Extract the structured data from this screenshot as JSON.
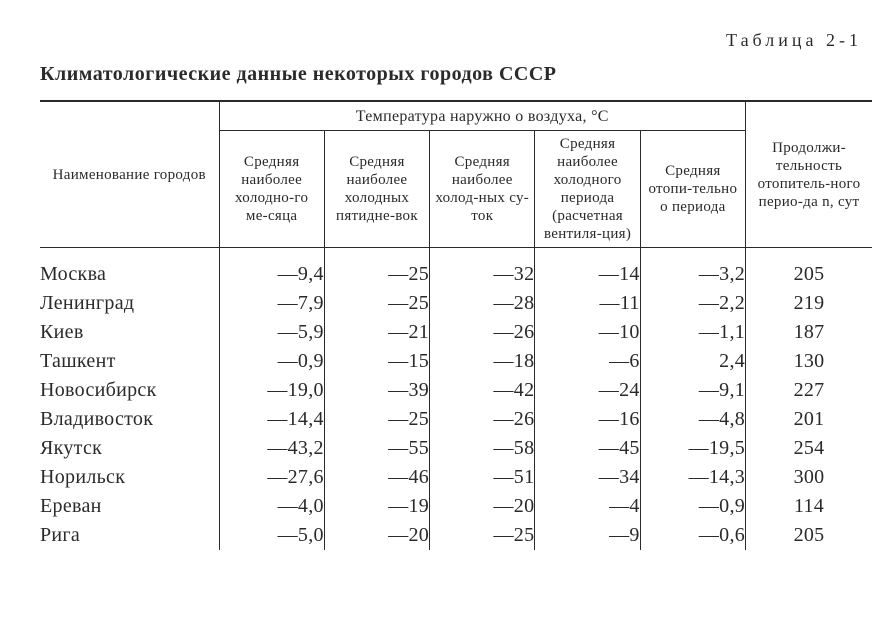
{
  "table_number": "Таблица 2-1",
  "title": "Климатологические данные некоторых городов СССР",
  "header": {
    "city": "Наименование городов",
    "temp_group": "Температура наружно о воздуха, °C",
    "col1": "Средняя наиболее холодно-го ме-сяца",
    "col2": "Средняя наиболее холодных пятидне-вок",
    "col3": "Средняя наиболее холод-ных су-ток",
    "col4": "Средняя наиболее холодного периода (расчетная вентиля-ция)",
    "col5": "Средняя отопи-тельно о периода",
    "duration": "Продолжи-тельность отопитель-ного перио-да n, сут"
  },
  "rows": [
    {
      "city": "Москва",
      "c1": "—9,4",
      "c2": "—25",
      "c3": "—32",
      "c4": "—14",
      "c5": "—3,2",
      "dur": "205"
    },
    {
      "city": "Ленинград",
      "c1": "—7,9",
      "c2": "—25",
      "c3": "—28",
      "c4": "—11",
      "c5": "—2,2",
      "dur": "219"
    },
    {
      "city": "Киев",
      "c1": "—5,9",
      "c2": "—21",
      "c3": "—26",
      "c4": "—10",
      "c5": "—1,1",
      "dur": "187"
    },
    {
      "city": "Ташкент",
      "c1": "—0,9",
      "c2": "—15",
      "c3": "—18",
      "c4": "—6",
      "c5": "2,4",
      "dur": "130"
    },
    {
      "city": "Новосибирск",
      "c1": "—19,0",
      "c2": "—39",
      "c3": "—42",
      "c4": "—24",
      "c5": "—9,1",
      "dur": "227"
    },
    {
      "city": "Владивосток",
      "c1": "—14,4",
      "c2": "—25",
      "c3": "—26",
      "c4": "—16",
      "c5": "—4,8",
      "dur": "201"
    },
    {
      "city": "Якутск",
      "c1": "—43,2",
      "c2": "—55",
      "c3": "—58",
      "c4": "—45",
      "c5": "—19,5",
      "dur": "254"
    },
    {
      "city": "Норильск",
      "c1": "—27,6",
      "c2": "—46",
      "c3": "—51",
      "c4": "—34",
      "c5": "—14,3",
      "dur": "300"
    },
    {
      "city": "Ереван",
      "c1": "—4,0",
      "c2": "—19",
      "c3": "—20",
      "c4": "—4",
      "c5": "—0,9",
      "dur": "114"
    },
    {
      "city": "Рига",
      "c1": "—5,0",
      "c2": "—20",
      "c3": "—25",
      "c4": "—9",
      "c5": "—0,6",
      "dur": "205"
    }
  ],
  "style": {
    "text_color": "#2a2a2a",
    "background_color": "#ffffff",
    "rule_color": "#2a2a2a",
    "body_font_size": 18,
    "title_font_size": 20,
    "head_font_size": 15,
    "data_font_size": 20
  }
}
